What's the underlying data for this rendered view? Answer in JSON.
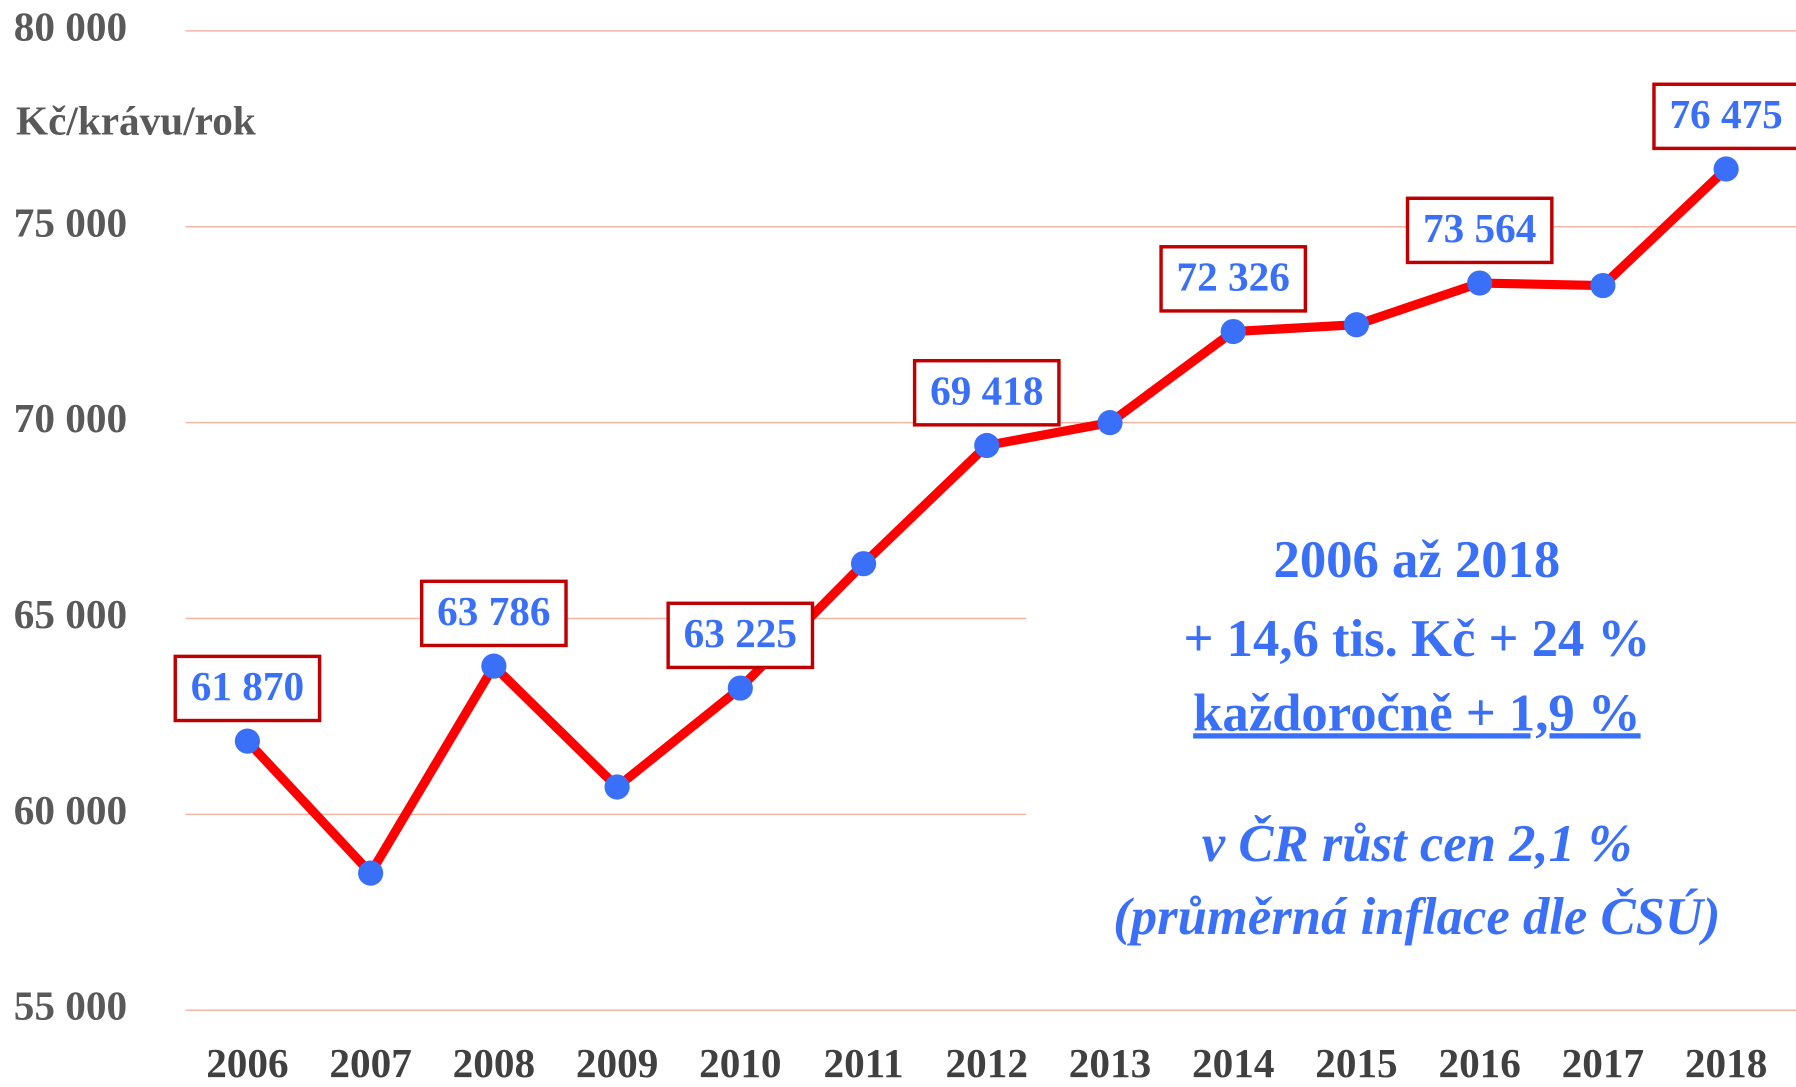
{
  "chart_data": {
    "type": "line",
    "y_label": "Kč/krávu/rok",
    "categories": [
      "2006",
      "2007",
      "2008",
      "2009",
      "2010",
      "2011",
      "2012",
      "2013",
      "2014",
      "2015",
      "2016",
      "2017",
      "2018"
    ],
    "series": [
      {
        "name": null,
        "color": "#ff0000",
        "marker_color": "#3a6ff7",
        "values": [
          61870,
          58500,
          63786,
          60700,
          63225,
          66400,
          69418,
          70000,
          72326,
          72500,
          73564,
          73500,
          76475
        ],
        "value_labels": [
          "61 870",
          null,
          "63 786",
          null,
          "63 225",
          null,
          "69 418",
          null,
          "72 326",
          null,
          "73 564",
          null,
          "76 475"
        ]
      }
    ],
    "ylim": [
      55000,
      80000
    ],
    "yticks": [
      {
        "value": 55000,
        "label": "55 000"
      },
      {
        "value": 60000,
        "label": "60 000"
      },
      {
        "value": 65000,
        "label": "65 000"
      },
      {
        "value": 70000,
        "label": "70 000"
      },
      {
        "value": 75000,
        "label": "75 000"
      },
      {
        "value": 80000,
        "label": "80 000"
      }
    ],
    "grid": true,
    "annotations": [
      "2006 až 2018",
      "+ 14,6 tis. Kč + 24 %",
      "každoročně + 1,9 %",
      "v ČR růst cen 2,1 %",
      "(průměrná inflace dle ČSÚ)"
    ]
  }
}
